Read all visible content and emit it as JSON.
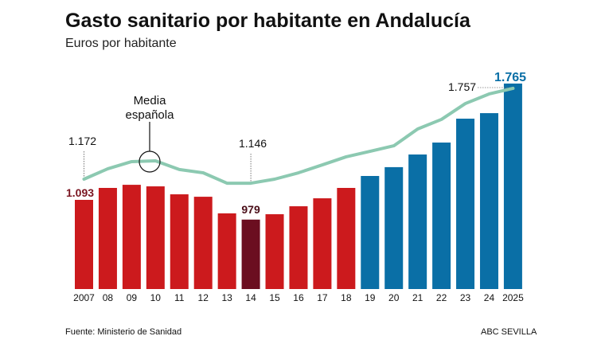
{
  "title": "Gasto sanitario por habitante en Andalucía",
  "subtitle": "Euros por habitante",
  "source": "Fuente: Ministerio de Sanidad",
  "brand": "ABC SEVILLA",
  "chart_data": {
    "type": "bar",
    "categories": [
      "2007",
      "08",
      "09",
      "10",
      "11",
      "12",
      "13",
      "14",
      "15",
      "16",
      "17",
      "18",
      "19",
      "20",
      "21",
      "22",
      "23",
      "24",
      "2025"
    ],
    "series": [
      {
        "type": "bar",
        "values": [
          1093,
          1162,
          1180,
          1171,
          1125,
          1111,
          1015,
          979,
          1010,
          1056,
          1102,
          1162,
          1231,
          1282,
          1355,
          1424,
          1562,
          1594,
          1765
        ],
        "colors": {
          "red": "#cc1a1d",
          "highlight": "#6b0e20",
          "blue": "#0a6fa6"
        }
      },
      {
        "name": "Media española",
        "type": "line",
        "color": "#8cc9b1",
        "values": [
          1172,
          1239,
          1285,
          1290,
          1234,
          1213,
          1146,
          1146,
          1172,
          1213,
          1264,
          1316,
          1351,
          1387,
          1495,
          1557,
          1659,
          1721,
          1757
        ]
      }
    ],
    "annotations": {
      "first_bar": "1.093",
      "min_bar": "979",
      "last_bar": "1.765",
      "line_first": "1.172",
      "line_2014": "1.146",
      "line_last": "1.757",
      "line_label": "Media española"
    },
    "grid": false,
    "legend": "none"
  }
}
